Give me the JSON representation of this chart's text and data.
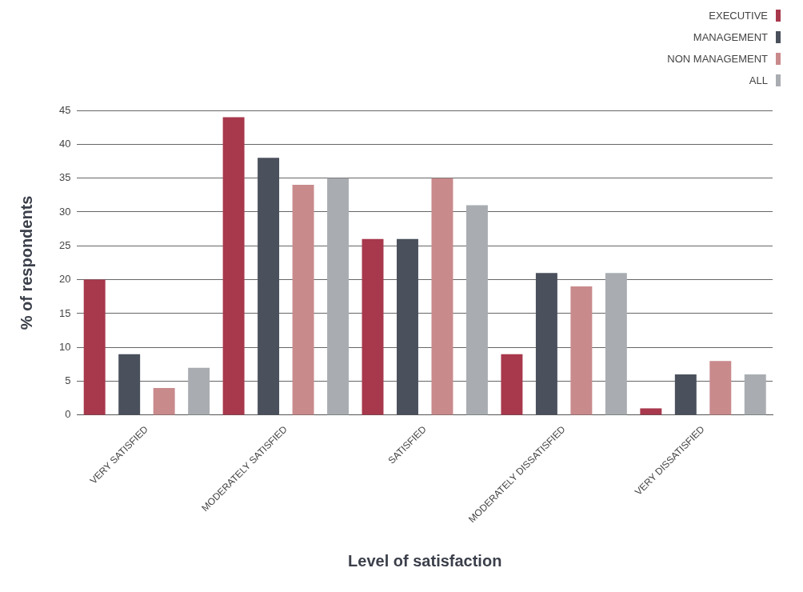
{
  "chart_data": {
    "type": "bar",
    "xlabel": "Level of satisfaction",
    "ylabel": "% of respondents",
    "categories": [
      "VERY SATISFIED",
      "MODERATELY SATISFIED",
      "SATISFIED",
      "MODERATELY DISSATISFIED",
      "VERY DISSATISFIED"
    ],
    "series": [
      {
        "name": "EXECUTIVE",
        "color": "#a8384c",
        "values": [
          20,
          44,
          26,
          9,
          1
        ]
      },
      {
        "name": "MANAGEMENT",
        "color": "#4a505c",
        "values": [
          9,
          38,
          26,
          21,
          6
        ]
      },
      {
        "name": "NON MANAGEMENT",
        "color": "#c98a8c",
        "values": [
          4,
          34,
          35,
          19,
          8
        ]
      },
      {
        "name": "ALL",
        "color": "#a9adb1",
        "values": [
          7,
          35,
          31,
          21,
          6
        ]
      }
    ],
    "ylim": [
      0,
      45
    ],
    "yticks": [
      0,
      5,
      10,
      15,
      20,
      25,
      30,
      35,
      40,
      45
    ],
    "grid": "y",
    "legend": "top right"
  }
}
